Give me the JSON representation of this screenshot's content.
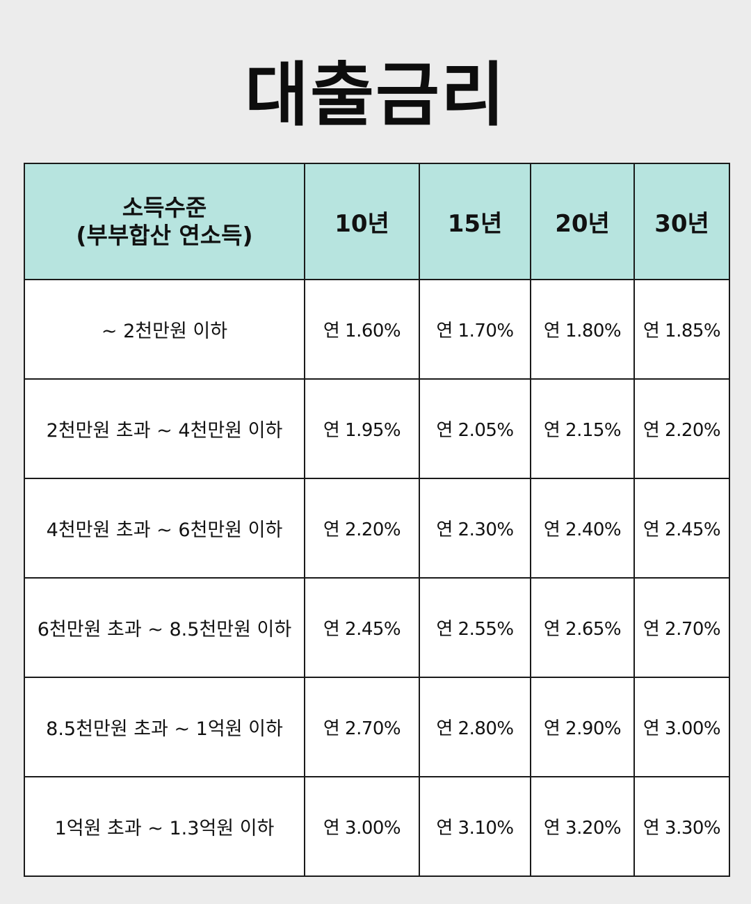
{
  "title": "대출금리",
  "table": {
    "header": {
      "income_line1": "소득수준",
      "income_line2": "(부부합산 연소득)",
      "terms": [
        "10년",
        "15년",
        "20년",
        "30년"
      ]
    },
    "rows": [
      {
        "income": "~ 2천만원 이하",
        "rates": [
          "연 1.60%",
          "연 1.70%",
          "연 1.80%",
          "연 1.85%"
        ]
      },
      {
        "income": "2천만원 초과 ~ 4천만원 이하",
        "rates": [
          "연 1.95%",
          "연 2.05%",
          "연 2.15%",
          "연 2.20%"
        ]
      },
      {
        "income": "4천만원 초과 ~ 6천만원 이하",
        "rates": [
          "연 2.20%",
          "연 2.30%",
          "연 2.40%",
          "연 2.45%"
        ]
      },
      {
        "income": "6천만원 초과 ~ 8.5천만원 이하",
        "rates": [
          "연 2.45%",
          "연 2.55%",
          "연 2.65%",
          "연 2.70%"
        ]
      },
      {
        "income": "8.5천만원 초과 ~ 1억원 이하",
        "rates": [
          "연 2.70%",
          "연 2.80%",
          "연 2.90%",
          "연 3.00%"
        ]
      },
      {
        "income": "1억원 초과 ~ 1.3억원 이하",
        "rates": [
          "연 3.00%",
          "연 3.10%",
          "연 3.20%",
          "연 3.30%"
        ]
      }
    ]
  },
  "colors": {
    "background": "#ececec",
    "header_fill": "#b7e4df",
    "border": "#1a1a1a"
  }
}
